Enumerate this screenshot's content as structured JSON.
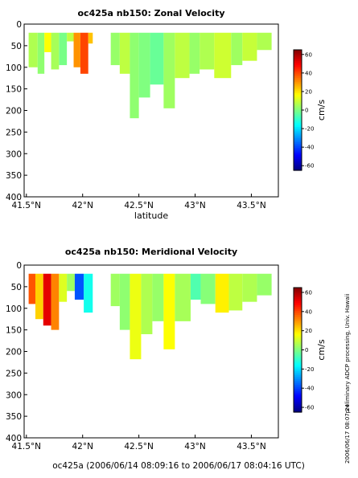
{
  "chart_data": [
    {
      "type": "heatmap",
      "title": "oc425a nb150: Zonal Velocity",
      "xlabel": "latitude",
      "ylabel": "",
      "x_ticks": [
        "41.5°N",
        "42°N",
        "42.5°N",
        "43°N",
        "43.5°N"
      ],
      "x_tick_values": [
        41.5,
        42.0,
        42.5,
        43.0,
        43.5
      ],
      "y_ticks": [
        "0",
        "50",
        "100",
        "150",
        "200",
        "250",
        "300",
        "350",
        "400"
      ],
      "y_tick_values": [
        0,
        50,
        100,
        150,
        200,
        250,
        300,
        350,
        400
      ],
      "xlim": [
        41.48,
        43.74
      ],
      "ylim": [
        0,
        400
      ],
      "y_inverted": true,
      "colorbar": {
        "label": "cm/s",
        "ticks": [
          "60",
          "40",
          "20",
          "0",
          "-20",
          "-40",
          "-60"
        ],
        "tick_values": [
          60,
          40,
          20,
          0,
          -20,
          -40,
          -60
        ],
        "range": [
          -65,
          65
        ]
      },
      "columns": [
        {
          "lat": [
            41.52,
            41.6
          ],
          "depth": 100,
          "value": 6
        },
        {
          "lat": [
            41.6,
            41.66
          ],
          "depth": 115,
          "value": 2
        },
        {
          "lat": [
            41.66,
            41.72
          ],
          "depth": 65,
          "value": 16
        },
        {
          "lat": [
            41.72,
            41.79
          ],
          "depth": 105,
          "value": 5
        },
        {
          "lat": [
            41.79,
            41.86
          ],
          "depth": 95,
          "value": -1
        },
        {
          "lat": [
            41.86,
            41.92
          ],
          "depth": 40,
          "value": 8
        },
        {
          "lat": [
            41.92,
            41.98
          ],
          "depth": 100,
          "value": 30
        },
        {
          "lat": [
            41.98,
            42.05
          ],
          "depth": 115,
          "value": 40
        },
        {
          "lat": [
            42.05,
            42.09
          ],
          "depth": 45,
          "value": 24
        },
        {
          "lat": [
            42.25,
            42.33
          ],
          "depth": 95,
          "value": 3
        },
        {
          "lat": [
            42.33,
            42.42
          ],
          "depth": 115,
          "value": 8
        },
        {
          "lat": [
            42.42,
            42.5
          ],
          "depth": 218,
          "value": 2
        },
        {
          "lat": [
            42.5,
            42.6
          ],
          "depth": 170,
          "value": 0
        },
        {
          "lat": [
            42.6,
            42.72
          ],
          "depth": 140,
          "value": -3
        },
        {
          "lat": [
            42.72,
            42.82
          ],
          "depth": 195,
          "value": 4
        },
        {
          "lat": [
            42.82,
            42.95
          ],
          "depth": 125,
          "value": 8
        },
        {
          "lat": [
            42.95,
            43.04
          ],
          "depth": 115,
          "value": 3
        },
        {
          "lat": [
            43.04,
            43.17
          ],
          "depth": 105,
          "value": 6
        },
        {
          "lat": [
            43.17,
            43.32
          ],
          "depth": 125,
          "value": 10
        },
        {
          "lat": [
            43.32,
            43.42
          ],
          "depth": 95,
          "value": 4
        },
        {
          "lat": [
            43.42,
            43.55
          ],
          "depth": 85,
          "value": 9
        },
        {
          "lat": [
            43.55,
            43.68
          ],
          "depth": 60,
          "value": 6
        }
      ]
    },
    {
      "type": "heatmap",
      "title": "oc425a nb150: Meridional Velocity",
      "xlabel": "",
      "ylabel": "",
      "x_ticks": [
        "41.5°N",
        "42°N",
        "42.5°N",
        "43°N",
        "43.5°N"
      ],
      "x_tick_values": [
        41.5,
        42.0,
        42.5,
        43.0,
        43.5
      ],
      "y_ticks": [
        "0",
        "50",
        "100",
        "150",
        "200",
        "250",
        "300",
        "350",
        "400"
      ],
      "y_tick_values": [
        0,
        50,
        100,
        150,
        200,
        250,
        300,
        350,
        400
      ],
      "xlim": [
        41.48,
        43.74
      ],
      "ylim": [
        0,
        400
      ],
      "y_inverted": true,
      "colorbar": {
        "label": "cm/s",
        "ticks": [
          "60",
          "40",
          "20",
          "0",
          "-20",
          "-40",
          "-60"
        ],
        "tick_values": [
          60,
          40,
          20,
          0,
          -20,
          -40,
          -60
        ],
        "range": [
          -65,
          65
        ]
      },
      "columns": [
        {
          "lat": [
            41.52,
            41.58
          ],
          "depth": 90,
          "value": 38
        },
        {
          "lat": [
            41.58,
            41.65
          ],
          "depth": 125,
          "value": 22
        },
        {
          "lat": [
            41.65,
            41.72
          ],
          "depth": 140,
          "value": 52
        },
        {
          "lat": [
            41.72,
            41.79
          ],
          "depth": 150,
          "value": 32
        },
        {
          "lat": [
            41.79,
            41.86
          ],
          "depth": 85,
          "value": 12
        },
        {
          "lat": [
            41.86,
            41.93
          ],
          "depth": 60,
          "value": 4
        },
        {
          "lat": [
            41.93,
            42.01
          ],
          "depth": 80,
          "value": -38
        },
        {
          "lat": [
            42.01,
            42.09
          ],
          "depth": 110,
          "value": -14
        },
        {
          "lat": [
            42.25,
            42.33
          ],
          "depth": 95,
          "value": 4
        },
        {
          "lat": [
            42.33,
            42.42
          ],
          "depth": 150,
          "value": 2
        },
        {
          "lat": [
            42.42,
            42.52
          ],
          "depth": 218,
          "value": 14
        },
        {
          "lat": [
            42.52,
            42.62
          ],
          "depth": 160,
          "value": 6
        },
        {
          "lat": [
            42.62,
            42.72
          ],
          "depth": 130,
          "value": 3
        },
        {
          "lat": [
            42.72,
            42.82
          ],
          "depth": 195,
          "value": 16
        },
        {
          "lat": [
            42.82,
            42.96
          ],
          "depth": 130,
          "value": 5
        },
        {
          "lat": [
            42.96,
            43.05
          ],
          "depth": 80,
          "value": -6
        },
        {
          "lat": [
            43.05,
            43.18
          ],
          "depth": 90,
          "value": 1
        },
        {
          "lat": [
            43.18,
            43.3
          ],
          "depth": 110,
          "value": 18
        },
        {
          "lat": [
            43.3,
            43.42
          ],
          "depth": 105,
          "value": 8
        },
        {
          "lat": [
            43.42,
            43.55
          ],
          "depth": 85,
          "value": 6
        },
        {
          "lat": [
            43.55,
            43.68
          ],
          "depth": 70,
          "value": 3
        }
      ]
    }
  ],
  "footer": "oc425a (2006/06/14 08:09:16 to 2006/06/17 08:04:16 UTC)",
  "side_note": "preliminary ADCP processing,  Univ. Hawaii",
  "side_date": "2006/06/17 08:07:24"
}
